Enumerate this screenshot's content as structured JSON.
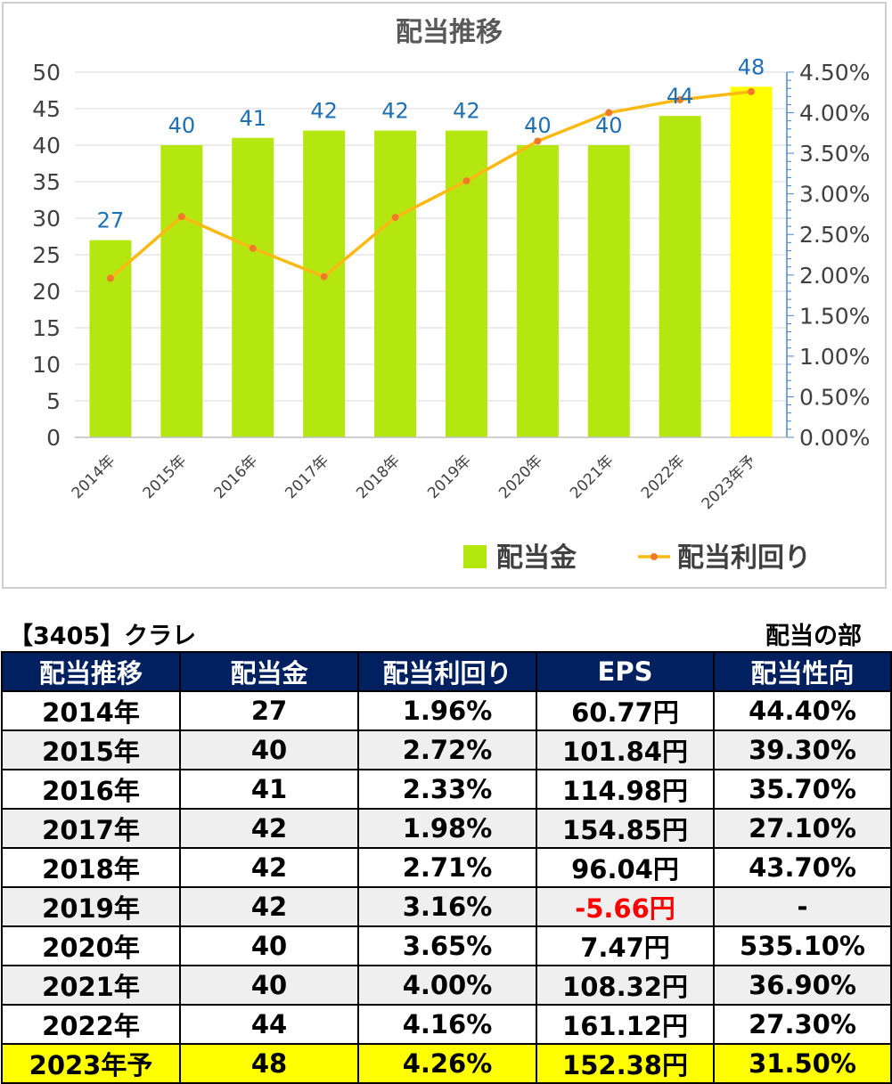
{
  "chart_data": {
    "type": "bar+line",
    "title": "配当推移",
    "categories": [
      "2014年",
      "2015年",
      "2016年",
      "2017年",
      "2018年",
      "2019年",
      "2020年",
      "2021年",
      "2022年",
      "2023年予"
    ],
    "series": [
      {
        "name": "配当金",
        "type": "bar",
        "axis": "left",
        "values": [
          27,
          40,
          41,
          42,
          42,
          42,
          40,
          40,
          44,
          48
        ],
        "color": "#b4e70f",
        "highlight_color": "#ffff00",
        "highlight_index": 9
      },
      {
        "name": "配当利回り",
        "type": "line",
        "axis": "right",
        "values": [
          1.96,
          2.72,
          2.33,
          1.98,
          2.71,
          3.16,
          3.65,
          4.0,
          4.16,
          4.26
        ],
        "color": "#fbb914",
        "marker_color": "#f07a2a"
      }
    ],
    "data_labels": [
      "27",
      "40",
      "41",
      "42",
      "42",
      "42",
      "40",
      "40",
      "44",
      "48"
    ],
    "data_label_color": "#1f6fb5",
    "y_left": {
      "min": 0,
      "max": 50,
      "step": 5,
      "tick_labels": [
        "0",
        "5",
        "10",
        "15",
        "20",
        "25",
        "30",
        "35",
        "40",
        "45",
        "50"
      ]
    },
    "y_right": {
      "min": 0,
      "max": 4.5,
      "step": 0.5,
      "tick_labels": [
        "0.00%",
        "0.50%",
        "1.00%",
        "1.50%",
        "2.00%",
        "2.50%",
        "3.00%",
        "3.50%",
        "4.00%",
        "4.50%"
      ]
    },
    "grid": true,
    "legend": {
      "placement": "bottom-right",
      "items": [
        "配当金",
        "配当利回り"
      ]
    }
  },
  "captions": {
    "company": "【3405】クラレ",
    "section": "配当の部"
  },
  "table": {
    "headers": [
      "配当推移",
      "配当金",
      "配当利回り",
      "EPS",
      "配当性向"
    ],
    "rows": [
      [
        "2014年",
        "27",
        "1.96%",
        "60.77円",
        "44.40%"
      ],
      [
        "2015年",
        "40",
        "2.72%",
        "101.84円",
        "39.30%"
      ],
      [
        "2016年",
        "41",
        "2.33%",
        "114.98円",
        "35.70%"
      ],
      [
        "2017年",
        "42",
        "1.98%",
        "154.85円",
        "27.10%"
      ],
      [
        "2018年",
        "42",
        "2.71%",
        "96.04円",
        "43.70%"
      ],
      [
        "2019年",
        "42",
        "3.16%",
        "-5.66円",
        "-"
      ],
      [
        "2020年",
        "40",
        "3.65%",
        "7.47円",
        "535.10%"
      ],
      [
        "2021年",
        "40",
        "4.00%",
        "108.32円",
        "36.90%"
      ],
      [
        "2022年",
        "44",
        "4.16%",
        "161.12円",
        "27.30%"
      ],
      [
        "2023年予",
        "48",
        "4.26%",
        "152.38円",
        "31.50%"
      ]
    ],
    "header_bg": "#002060",
    "negative_color": "#ff0000",
    "forecast_bg": "#ffff00",
    "stripe_bg": "#efefef"
  }
}
